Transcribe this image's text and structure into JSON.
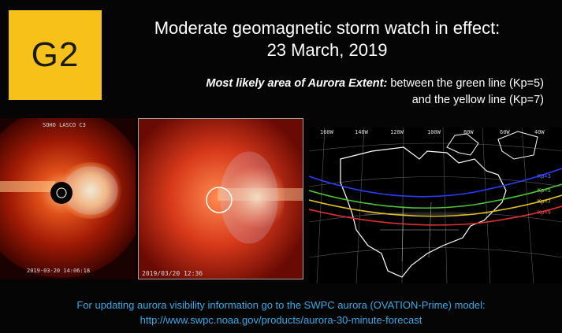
{
  "badge": {
    "label": "G2",
    "color": "#f6c21a"
  },
  "header": {
    "title_line1": "Moderate geomagnetic storm watch in effect:",
    "title_line2": "23 March, 2019"
  },
  "extent": {
    "lead": "Most likely area of Aurora Extent:",
    "line1_rest": "between the green line (Kp=5)",
    "line2": "and the yellow line (Kp=7)"
  },
  "images": {
    "left_label_top": "SOHO LASCO C3",
    "left_timestamp": "2019-03-20 14:06:18",
    "middle_timestamp": "2019/03/20  12:36",
    "map_longitudes": [
      "160W",
      "140W",
      "120W",
      "100W",
      "80W",
      "60W",
      "40W"
    ],
    "map_kp_labels": [
      "Kp=3",
      "Kp=5",
      "Kp=7",
      "Kp=9"
    ],
    "kp_colors": [
      "#2a3cff",
      "#4fc23a",
      "#e0c020",
      "#e03030"
    ]
  },
  "footer": {
    "line1": "For updating aurora visibility information go to the SWPC aurora (OVATION-Prime) model:",
    "line2": "http://www.swpc.noaa.gov/products/aurora-30-minute-forecast",
    "color": "#39a8e6"
  }
}
